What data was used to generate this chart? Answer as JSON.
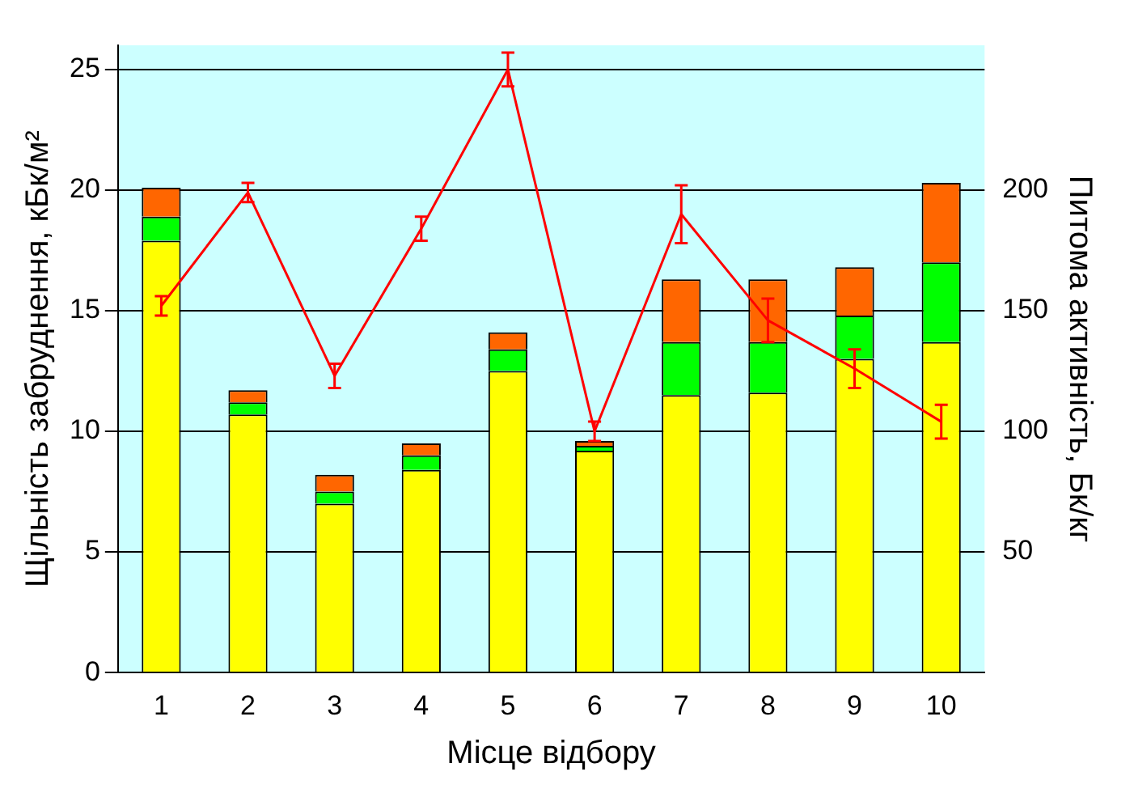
{
  "chart_data": {
    "type": "bar",
    "stacked": true,
    "xlabel": "Місце відбору",
    "ylabel": "Щільність забруднення, кБк/м²",
    "y2label": "Питома активність, Бк/кг",
    "categories": [
      "1",
      "2",
      "3",
      "4",
      "5",
      "6",
      "7",
      "8",
      "9",
      "10"
    ],
    "series": [
      {
        "color": "#ffff00",
        "values": [
          17.9,
          10.7,
          7.0,
          8.4,
          12.5,
          9.2,
          11.5,
          11.6,
          13.0,
          13.7
        ]
      },
      {
        "color": "#00ff00",
        "values": [
          1.0,
          0.5,
          0.5,
          0.6,
          0.9,
          0.2,
          2.2,
          2.1,
          1.8,
          3.3
        ]
      },
      {
        "color": "#ff6600",
        "values": [
          1.2,
          0.5,
          0.7,
          0.5,
          0.7,
          0.2,
          2.6,
          2.6,
          2.0,
          3.3
        ]
      },
      {
        "type": "line",
        "axis": "y2",
        "color": "#ff0000",
        "marker": "none",
        "values": [
          152,
          199,
          123,
          184,
          250,
          100,
          190,
          146,
          126,
          104
        ],
        "errors": [
          4,
          4,
          5,
          5,
          7,
          4,
          12,
          9,
          8,
          7
        ]
      }
    ],
    "ylim": [
      0,
      26
    ],
    "yticks": [
      0,
      5,
      10,
      15,
      20,
      25
    ],
    "y2lim": [
      0,
      260
    ],
    "y2ticks": [
      50,
      100,
      150,
      200
    ],
    "grid": "y",
    "legend": false
  }
}
